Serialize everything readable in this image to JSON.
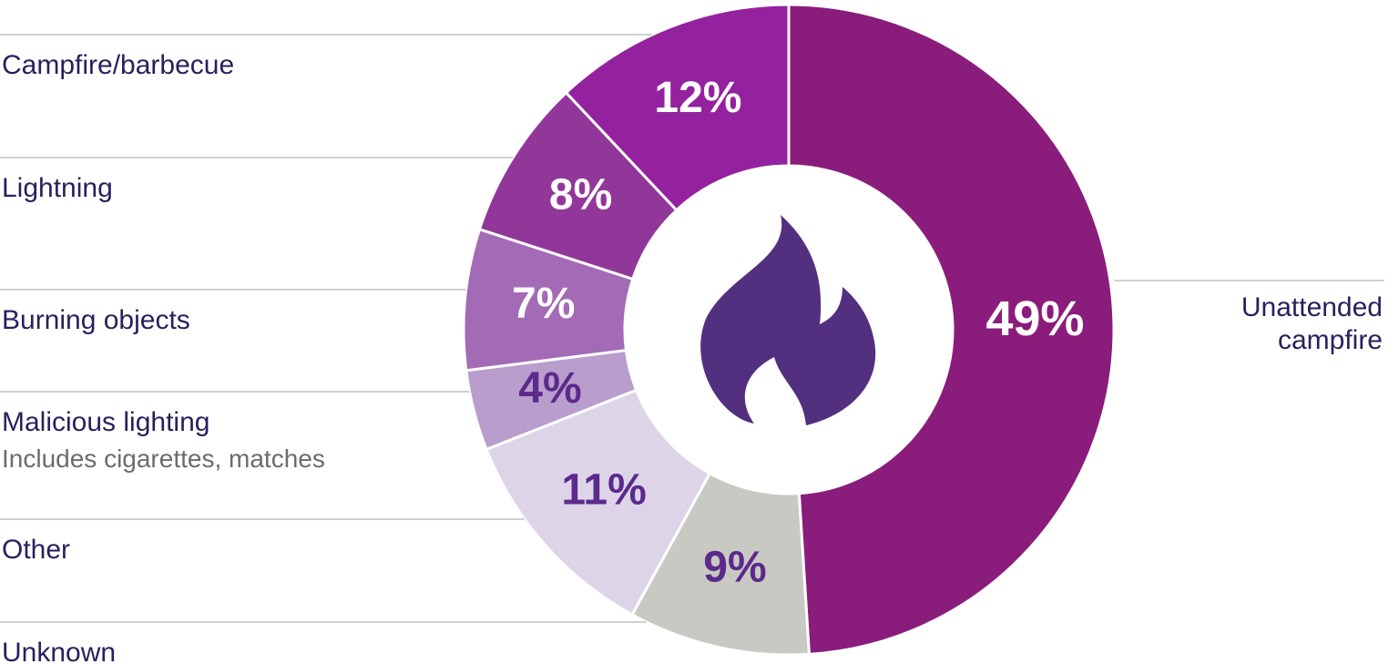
{
  "chart_data": {
    "type": "donut",
    "categories": [
      "Unattended campfire",
      "Unknown",
      "Other",
      "Malicious lighting",
      "Burning objects",
      "Lightning",
      "Campfire/barbecue"
    ],
    "values": [
      49,
      9,
      11,
      4,
      7,
      8,
      12
    ],
    "value_labels": [
      "49%",
      "9%",
      "11%",
      "4%",
      "7%",
      "8%",
      "12%"
    ],
    "colors": [
      "#8a1c7c",
      "#c9c9c3",
      "#ddd4e8",
      "#b99dcd",
      "#a36bb6",
      "#92379a",
      "#94229f"
    ],
    "label_colors": [
      "#ffffff",
      "#5b2a8c",
      "#5b2a8c",
      "#5b2a8c",
      "#ffffff",
      "#ffffff",
      "#ffffff"
    ],
    "annotation": "Includes cigarettes, matches"
  }
}
